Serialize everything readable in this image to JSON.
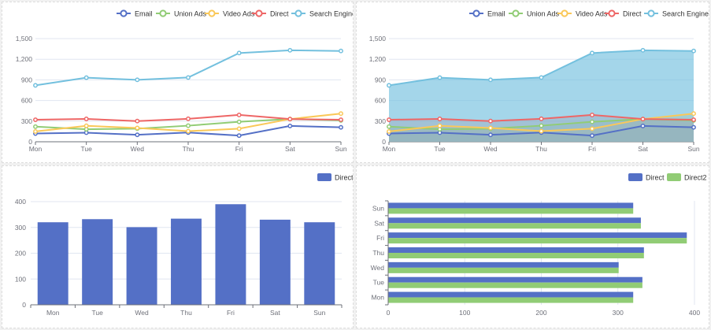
{
  "colors": {
    "Email": "#5470c6",
    "Union Ads": "#91cc75",
    "Video Ads": "#fac858",
    "Direct": "#ee6666",
    "Search Engine": "#73c0de",
    "bar": "#5470c6",
    "bar2": "#91cc75",
    "axis": "#6e7079",
    "grid": "#e0e6f1",
    "label": "#6e7079"
  },
  "chart_data": [
    {
      "type": "line",
      "title": "",
      "legend_position": "top-right",
      "categories": [
        "Mon",
        "Tue",
        "Wed",
        "Thu",
        "Fri",
        "Sat",
        "Sun"
      ],
      "ylim": [
        0,
        1500
      ],
      "yticks": [
        "0",
        "300",
        "600",
        "900",
        "1,200",
        "1,500"
      ],
      "series": [
        {
          "name": "Email",
          "values": [
            120,
            132,
            101,
            134,
            90,
            230,
            210
          ]
        },
        {
          "name": "Union Ads",
          "values": [
            220,
            182,
            191,
            234,
            290,
            330,
            310
          ]
        },
        {
          "name": "Video Ads",
          "values": [
            150,
            232,
            201,
            154,
            190,
            330,
            410
          ]
        },
        {
          "name": "Direct",
          "values": [
            320,
            332,
            301,
            334,
            390,
            330,
            320
          ]
        },
        {
          "name": "Search Engine",
          "values": [
            820,
            932,
            901,
            934,
            1290,
            1330,
            1320
          ]
        }
      ]
    },
    {
      "type": "area",
      "title": "",
      "legend_position": "top-right",
      "categories": [
        "Mon",
        "Tue",
        "Wed",
        "Thu",
        "Fri",
        "Sat",
        "Sun"
      ],
      "ylim": [
        0,
        1500
      ],
      "yticks": [
        "0",
        "300",
        "600",
        "900",
        "1,200",
        "1,500"
      ],
      "series": [
        {
          "name": "Email",
          "values": [
            120,
            132,
            101,
            134,
            90,
            230,
            210
          ]
        },
        {
          "name": "Union Ads",
          "values": [
            220,
            182,
            191,
            234,
            290,
            330,
            310
          ]
        },
        {
          "name": "Video Ads",
          "values": [
            150,
            232,
            201,
            154,
            190,
            330,
            410
          ]
        },
        {
          "name": "Direct",
          "values": [
            320,
            332,
            301,
            334,
            390,
            330,
            320
          ]
        },
        {
          "name": "Search Engine",
          "values": [
            820,
            932,
            901,
            934,
            1290,
            1330,
            1320
          ]
        }
      ]
    },
    {
      "type": "bar",
      "title": "",
      "legend_position": "top-right",
      "categories": [
        "Mon",
        "Tue",
        "Wed",
        "Thu",
        "Fri",
        "Sat",
        "Sun"
      ],
      "ylim": [
        0,
        400
      ],
      "yticks": [
        "0",
        "100",
        "200",
        "300",
        "400"
      ],
      "series": [
        {
          "name": "Direct",
          "values": [
            320,
            332,
            301,
            334,
            390,
            330,
            320
          ]
        }
      ]
    },
    {
      "type": "bar",
      "orientation": "horizontal",
      "title": "",
      "legend_position": "top-right",
      "categories": [
        "Mon",
        "Tue",
        "Wed",
        "Thu",
        "Fri",
        "Sat",
        "Sun"
      ],
      "xlim": [
        0,
        400
      ],
      "xticks": [
        "0",
        "100",
        "200",
        "300",
        "400"
      ],
      "series": [
        {
          "name": "Direct",
          "values": [
            320,
            332,
            301,
            334,
            390,
            330,
            320
          ]
        },
        {
          "name": "Direct2",
          "values": [
            320,
            332,
            301,
            334,
            390,
            330,
            320
          ]
        }
      ]
    }
  ]
}
